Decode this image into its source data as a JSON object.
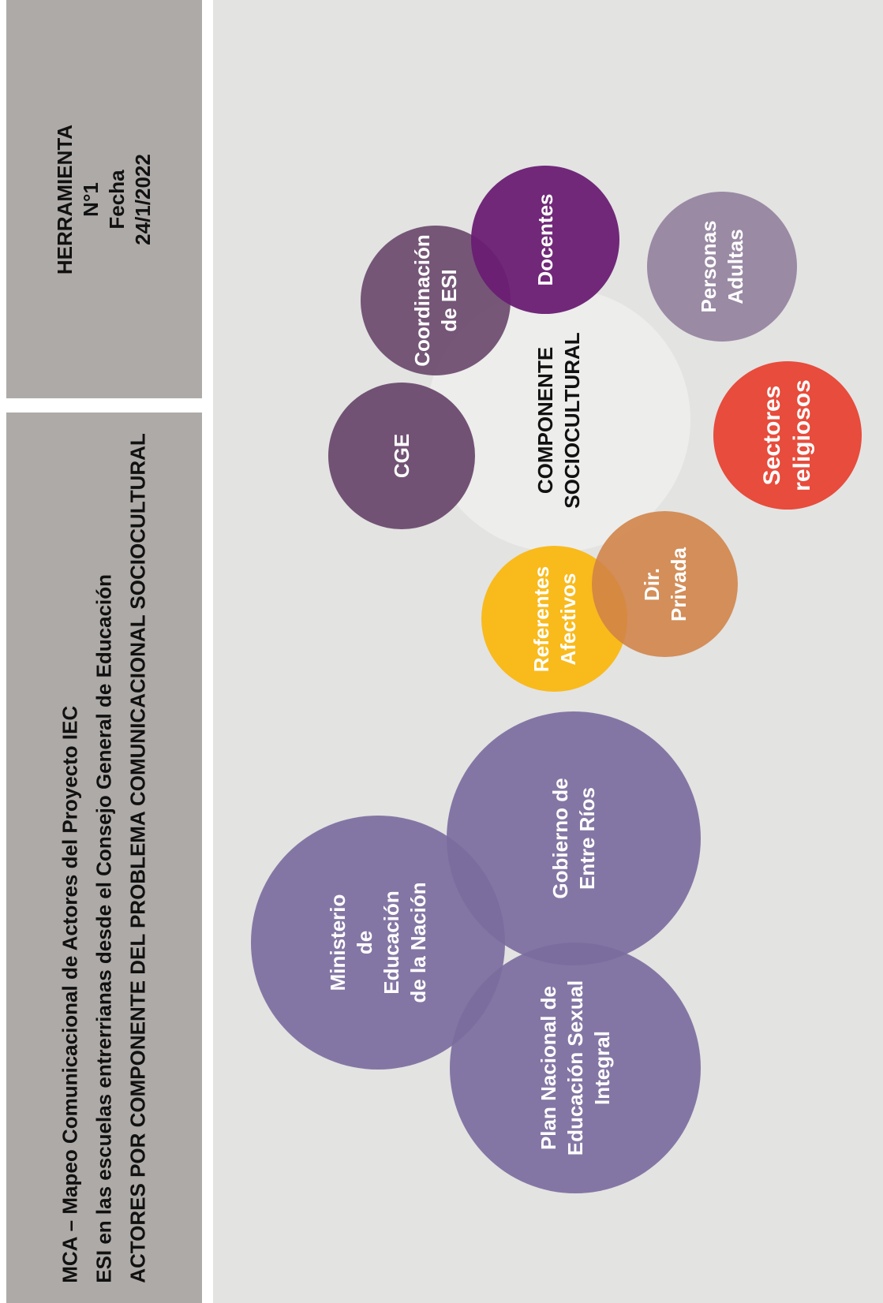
{
  "tool_box": {
    "lines": [
      "HERRAMIENTA",
      "N°1",
      "Fecha",
      "24/1/2022"
    ]
  },
  "title_box": {
    "lines": [
      "MCA – Mapeo Comunicacional de Actores del Proyecto IEC",
      "ESI en las escuelas entrerrianas desde el Consejo General de Educación",
      "ACTORES POR COMPONENTE DEL PROBLEMA COMUNICACIONAL SOCIOCULTURAL"
    ]
  },
  "diagram": {
    "center": {
      "lines": [
        "COMPONENTE",
        "SOCIOCULTURAL"
      ],
      "color": "#ededec"
    },
    "actors": [
      {
        "id": "cge",
        "lines": [
          "CGE"
        ],
        "color": "#6b4a6e"
      },
      {
        "id": "coordinacion",
        "lines": [
          "Coordinación",
          "de ESI"
        ],
        "color": "#6b4a6e"
      },
      {
        "id": "docentes",
        "lines": [
          "Docentes"
        ],
        "color": "#6a1d73"
      },
      {
        "id": "personas",
        "lines": [
          "Personas",
          "Adultas"
        ],
        "color": "#9a8aa4"
      },
      {
        "id": "sectores",
        "lines": [
          "Sectores",
          "religiosos"
        ],
        "color": "#e74c3c"
      },
      {
        "id": "dir-privada",
        "lines": [
          "Dir.",
          "Privada"
        ],
        "color": "#d08a52"
      },
      {
        "id": "referentes",
        "lines": [
          "Referentes",
          "Afectivos"
        ],
        "color": "#f9ba1c"
      },
      {
        "id": "gobierno",
        "lines": [
          "Gobierno de",
          "Entre Ríos"
        ],
        "color": "#7c6c9e"
      },
      {
        "id": "ministerio",
        "lines": [
          "Ministerio",
          "de",
          "Educación",
          "de la Nación"
        ],
        "color": "#7c6c9e"
      },
      {
        "id": "plan",
        "lines": [
          "Plan Nacional de",
          "Educación Sexual",
          "Integral"
        ],
        "color": "#7c6c9e"
      }
    ]
  }
}
